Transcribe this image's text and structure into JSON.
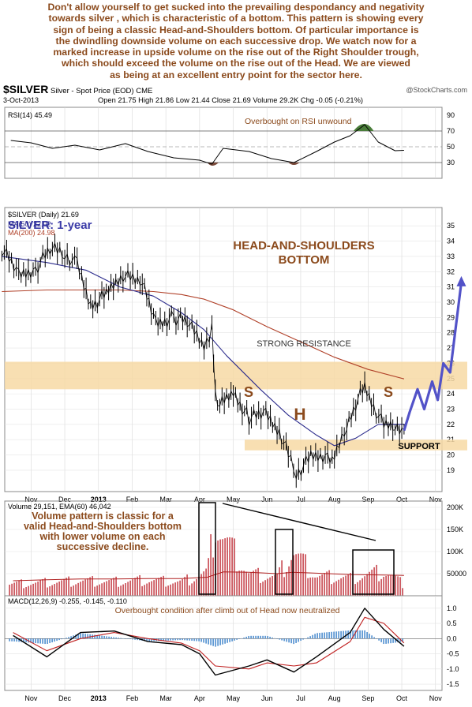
{
  "intro_lines": [
    "Don't allow yourself to get sucked into the prevailing despondancy and negativity",
    "towards silver , which is characteristic of a bottom. This pattern is showing every",
    "sign of being a classic Head-and-Shoulders bottom. Of particular importance is",
    "the dwindling downside volume on each successive drop. We watch now for a",
    "marked increase in upside volume on the rise out of the Right Shoulder trough,",
    "which should exceed the volume on the rise out of the Head. We are viewed",
    "as being at an excellent entry point for the sector here."
  ],
  "header": {
    "symbol": "$SILVER",
    "description": "Silver - Spot Price (EOD) CME",
    "watermark": "@StockCharts.com",
    "date": "3-Oct-2013",
    "ohlc": "Open 21.75  High 21.86  Low 21.44  Close 21.69  Volume 29.2K  Chg -0.05 (-0.21%)"
  },
  "colors": {
    "price": "#000000",
    "ma50": "#2b2b8c",
    "ma200": "#b04028",
    "volume": "#c84850",
    "projection": "#5252c8",
    "zone": "#f7d9a5",
    "annotation": "#8b4a1c",
    "macd_hist": "#4f8fd0",
    "rsi_overbought": "#4a7d3a",
    "rsi_oversold": "#7a4a3a"
  },
  "chart_data": [
    {
      "type": "line",
      "panel": "RSI",
      "legend": "RSI(14) 45.49",
      "annotation": "Overbought on RSI unwound",
      "ylim": [
        10,
        100
      ],
      "y_ticks": [
        "90",
        "70",
        "50",
        "30"
      ],
      "reference_lines": [
        70,
        30
      ],
      "x": [
        "Oct-13",
        "Nov-01",
        "Nov-20",
        "Dec-10",
        "Jan-02",
        "Jan-25",
        "Feb-15",
        "Mar-08",
        "Apr-01",
        "Apr-12",
        "Apr-22",
        "May-15",
        "Jun-05",
        "Jun-25",
        "Jul-15",
        "Aug-01",
        "Aug-15",
        "Aug-28",
        "Sep-10",
        "Sep-25",
        "Oct-03"
      ],
      "values": [
        58,
        55,
        48,
        52,
        46,
        54,
        44,
        36,
        33,
        28,
        48,
        44,
        35,
        30,
        44,
        56,
        64,
        78,
        56,
        45,
        45.49
      ]
    },
    {
      "type": "line",
      "panel": "Price",
      "title": "SILVER: 1-year",
      "legend": [
        "$SILVER (Daily) 21.69",
        "MA(50) 22.02",
        "MA(200) 24.98"
      ],
      "annotations": [
        "HEAD-AND-SHOULDERS BOTTOM",
        "STRONG RESISTANCE",
        "SUPPORT",
        "S",
        "H",
        "S"
      ],
      "ylim": [
        18,
        36
      ],
      "y_ticks": [
        "35",
        "34",
        "33",
        "32",
        "31",
        "30",
        "29",
        "28",
        "27",
        "26",
        "25",
        "24",
        "23",
        "22",
        "21",
        "20",
        "19"
      ],
      "x_ticks": [
        "Nov",
        "Dec",
        "2013",
        "Feb",
        "Mar",
        "Apr",
        "May",
        "Jun",
        "Jul",
        "Aug",
        "Sep",
        "Oct",
        "Nov"
      ],
      "resistance_zone": [
        24.3,
        26.1
      ],
      "support_zone": [
        20.3,
        21.0
      ],
      "series": [
        {
          "name": "$SILVER (Daily) 21.69",
          "x": [
            "Oct-05",
            "Oct-20",
            "Nov-05",
            "Nov-20",
            "Dec-01",
            "Dec-12",
            "Dec-24",
            "Jan-10",
            "Jan-25",
            "Feb-08",
            "Feb-22",
            "Mar-08",
            "Mar-22",
            "Apr-05",
            "Apr-12",
            "Apr-15",
            "Apr-19",
            "May-01",
            "May-15",
            "May-30",
            "Jun-12",
            "Jun-20",
            "Jun-27",
            "Jul-10",
            "Jul-25",
            "Aug-01",
            "Aug-12",
            "Aug-20",
            "Aug-28",
            "Sep-06",
            "Sep-15",
            "Sep-25",
            "Oct-03"
          ],
          "values": [
            33.5,
            31.8,
            32.2,
            33.6,
            33.2,
            32.4,
            29.8,
            30.6,
            31.9,
            31.6,
            28.6,
            29.0,
            28.6,
            27.2,
            28.2,
            24.0,
            23.2,
            24.1,
            22.4,
            22.7,
            21.6,
            20.0,
            18.8,
            19.8,
            19.9,
            19.7,
            21.9,
            23.4,
            24.4,
            23.2,
            21.9,
            22.0,
            21.69
          ]
        },
        {
          "name": "MA(50) 22.02",
          "x": [
            "Oct-05",
            "Nov-15",
            "Dec-20",
            "Jan-20",
            "Feb-20",
            "Mar-15",
            "Apr-05",
            "Apr-25",
            "May-25",
            "Jun-20",
            "Jul-15",
            "Aug-01",
            "Aug-20",
            "Sep-10",
            "Oct-03"
          ],
          "values": [
            33.0,
            32.6,
            32.1,
            31.0,
            30.4,
            29.3,
            28.2,
            26.5,
            24.3,
            22.6,
            21.3,
            20.6,
            21.1,
            22.0,
            22.02
          ]
        },
        {
          "name": "MA(200) 24.98",
          "x": [
            "Oct-05",
            "Nov-15",
            "Dec-20",
            "Jan-20",
            "Feb-20",
            "Mar-15",
            "Apr-05",
            "May-01",
            "Jun-01",
            "Jul-01",
            "Aug-01",
            "Sep-01",
            "Oct-03"
          ],
          "values": [
            30.7,
            30.8,
            30.8,
            30.8,
            30.7,
            30.5,
            30.2,
            29.5,
            28.4,
            27.4,
            26.4,
            25.6,
            24.98
          ]
        },
        {
          "name": "Projection",
          "x": [
            "Oct-03",
            "Oct-08",
            "Oct-15",
            "Oct-21",
            "Oct-28",
            "Nov-03",
            "Nov-08",
            "Nov-14",
            "Nov-24"
          ],
          "values": [
            21.6,
            22.8,
            24.3,
            23.0,
            24.8,
            23.6,
            26.0,
            25.4,
            31.3
          ]
        }
      ]
    },
    {
      "type": "bar",
      "panel": "Volume",
      "legend": "Volume 29,151, EMA(60) 46,042",
      "annotation": "Volume pattern is classic for a valid Head-and-Shoulders bottom with lower volume on each successive decline.",
      "ylim": [
        0,
        200000
      ],
      "y_ticks": [
        "200K",
        "150K",
        "100K",
        "50000"
      ],
      "x": [
        "Oct",
        "Nov",
        "Dec",
        "Jan",
        "Feb",
        "Mar",
        "Apr-08",
        "Apr-15",
        "Apr-22",
        "May",
        "Jun-10",
        "Jun-24",
        "Jul",
        "Aug",
        "Sep",
        "Oct"
      ],
      "values": [
        30000,
        34000,
        38000,
        36000,
        40000,
        35000,
        60000,
        195000,
        150000,
        55000,
        48000,
        112000,
        50000,
        46000,
        62000,
        29151
      ],
      "ema": [
        34000,
        36000,
        38000,
        38000,
        39000,
        39000,
        42000,
        48000,
        54000,
        53000,
        50000,
        53000,
        51000,
        48000,
        47000,
        46042
      ]
    },
    {
      "type": "line",
      "panel": "MACD",
      "legend": "MACD(12,26,9) -0.255, -0.145, -0.110",
      "annotation": "Overbought condition after climb out of Head now neutralized",
      "ylim": [
        -1.5,
        1.0
      ],
      "y_ticks": [
        "1.0",
        "0.5",
        "0.0",
        "-0.5",
        "-1.0",
        "-1.5"
      ],
      "series": [
        {
          "name": "MACD",
          "x": [
            "Oct",
            "Nov",
            "Dec",
            "Jan",
            "Feb",
            "Mar",
            "Apr-01",
            "Apr-15",
            "May",
            "Jun-01",
            "Jun-25",
            "Jul",
            "Aug",
            "Aug-28",
            "Sep-15",
            "Oct"
          ],
          "values": [
            0.1,
            -0.6,
            0.2,
            0.25,
            -0.1,
            -0.2,
            -0.5,
            -1.2,
            -0.9,
            -0.7,
            -1.1,
            -0.6,
            0.2,
            1.0,
            0.3,
            -0.255
          ]
        },
        {
          "name": "Signal",
          "x": [
            "Oct",
            "Nov",
            "Dec",
            "Jan",
            "Feb",
            "Mar",
            "Apr-01",
            "Apr-15",
            "May",
            "Jun-01",
            "Jun-25",
            "Jul",
            "Aug",
            "Aug-28",
            "Sep-15",
            "Oct"
          ],
          "values": [
            0.2,
            -0.4,
            0.0,
            0.2,
            0.0,
            -0.15,
            -0.4,
            -0.9,
            -1.0,
            -0.8,
            -0.9,
            -0.8,
            -0.1,
            0.7,
            0.5,
            -0.145
          ]
        }
      ]
    }
  ]
}
